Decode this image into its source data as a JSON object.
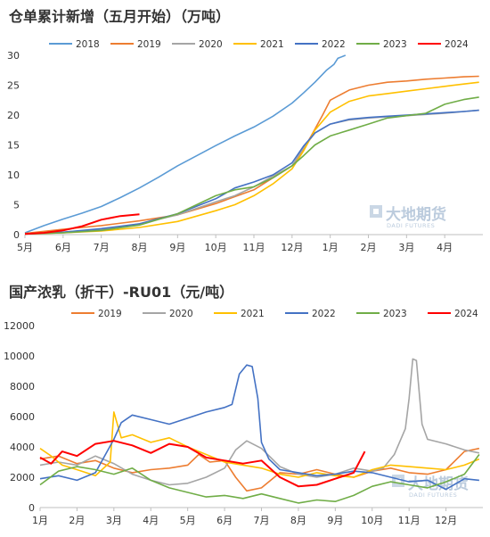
{
  "charts": [
    {
      "title": "仓单累计新增（五月开始）（万吨）",
      "type": "line",
      "x_labels": [
        "5月",
        "6月",
        "7月",
        "8月",
        "9月",
        "10月",
        "11月",
        "12月",
        "1月",
        "2月",
        "3月",
        "4月"
      ],
      "ylim": [
        0,
        30
      ],
      "yticks": [
        0,
        5,
        10,
        15,
        20,
        25,
        30
      ],
      "legend_position": "top",
      "watermark": {
        "main": "大地期货",
        "sub": "DADI FUTURES"
      }
    },
    {
      "title": "国产浓乳（折干）-RU01（元/吨）",
      "type": "line",
      "x_labels": [
        "1月",
        "2月",
        "3月",
        "4月",
        "5月",
        "6月",
        "7月",
        "8月",
        "9月",
        "10月",
        "11月",
        "12月"
      ],
      "ylim": [
        0,
        12000
      ],
      "yticks": [
        0,
        2000,
        4000,
        6000,
        8000,
        10000,
        12000
      ],
      "legend_position": "top",
      "watermark": {
        "main": "大地期货",
        "sub": "DADI FUTURES"
      }
    }
  ],
  "chart_data": [
    {
      "type": "line",
      "title": "仓单累计新增（五月开始）（万吨）",
      "xlabel": "",
      "ylabel": "",
      "x": [
        "5月",
        "6月",
        "7月",
        "8月",
        "9月",
        "10月",
        "11月",
        "12月",
        "1月",
        "2月",
        "3月",
        "4月"
      ],
      "ylim": [
        0,
        30
      ],
      "series": [
        {
          "name": "2018",
          "color": "#5b9bd5",
          "x": [
            0,
            0.5,
            1,
            1.5,
            2,
            2.5,
            3,
            3.5,
            4,
            4.5,
            5,
            5.5,
            6,
            6.5,
            7,
            7.3,
            7.6,
            7.9,
            8.1,
            8.2,
            8.4
          ],
          "y": [
            0.3,
            1.5,
            2.6,
            3.6,
            4.7,
            6.2,
            7.8,
            9.6,
            11.5,
            13.2,
            14.9,
            16.5,
            18.0,
            19.8,
            22.0,
            23.7,
            25.5,
            27.5,
            28.5,
            29.5,
            30.0
          ]
        },
        {
          "name": "2019",
          "color": "#ed7d31",
          "x": [
            0,
            1,
            2,
            3,
            4,
            5,
            6,
            6.5,
            7,
            7.2,
            7.5,
            7.8,
            8,
            8.5,
            9,
            9.5,
            10,
            10.5,
            11,
            11.5,
            11.9
          ],
          "y": [
            0.2,
            0.9,
            1.5,
            2.3,
            3.3,
            5.2,
            7.5,
            9.5,
            11.5,
            13.2,
            16.5,
            20.0,
            22.5,
            24.2,
            25.0,
            25.5,
            25.7,
            26.0,
            26.2,
            26.4,
            26.5
          ]
        },
        {
          "name": "2020",
          "color": "#a5a5a5",
          "x": [
            0,
            1,
            2,
            3,
            4,
            5,
            5.5,
            6,
            6.5,
            7,
            7.3,
            7.6,
            8,
            8.5,
            9,
            9.5,
            10,
            10.5,
            11,
            11.5,
            11.9
          ],
          "y": [
            0.1,
            0.4,
            0.8,
            1.8,
            3.3,
            5.5,
            6.5,
            8.0,
            9.8,
            11.5,
            14.5,
            17.0,
            18.5,
            19.2,
            19.5,
            19.7,
            19.9,
            20.1,
            20.3,
            20.6,
            20.8
          ]
        },
        {
          "name": "2021",
          "color": "#ffc000",
          "x": [
            0,
            1,
            2,
            3,
            4,
            5,
            5.5,
            6,
            6.5,
            7,
            7.3,
            7.6,
            8,
            8.5,
            9,
            9.5,
            10,
            10.5,
            11,
            11.5,
            11.9
          ],
          "y": [
            0.1,
            0.3,
            0.6,
            1.2,
            2.2,
            4.0,
            5.0,
            6.5,
            8.5,
            11.0,
            14.0,
            17.5,
            20.5,
            22.3,
            23.2,
            23.6,
            24.0,
            24.4,
            24.8,
            25.2,
            25.5
          ]
        },
        {
          "name": "2022",
          "color": "#4472c4",
          "x": [
            0,
            1,
            2,
            3,
            4,
            5,
            5.5,
            6,
            6.5,
            7,
            7.3,
            7.6,
            8,
            8.5,
            9,
            9.5,
            10,
            10.5,
            11,
            11.5,
            11.9
          ],
          "y": [
            0.1,
            0.4,
            1.0,
            1.8,
            3.5,
            6.0,
            7.8,
            8.8,
            10.0,
            12.0,
            14.8,
            17.0,
            18.5,
            19.3,
            19.6,
            19.8,
            20.0,
            20.2,
            20.4,
            20.6,
            20.8
          ]
        },
        {
          "name": "2023",
          "color": "#70ad47",
          "x": [
            0,
            1,
            2,
            3,
            4,
            5,
            5.5,
            6,
            6.5,
            7,
            7.3,
            7.6,
            8,
            8.5,
            9,
            9.5,
            10,
            10.5,
            11,
            11.5,
            11.9
          ],
          "y": [
            0.1,
            0.3,
            0.7,
            1.6,
            3.5,
            6.5,
            7.5,
            8.0,
            9.5,
            11.5,
            13.2,
            15.0,
            16.5,
            17.5,
            18.5,
            19.5,
            19.9,
            20.3,
            21.8,
            22.6,
            23.0
          ]
        },
        {
          "name": "2024",
          "color": "#ff0000",
          "x": [
            0,
            0.5,
            1,
            1.5,
            2,
            2.5,
            3
          ],
          "y": [
            0.1,
            0.3,
            0.7,
            1.4,
            2.5,
            3.1,
            3.4
          ]
        }
      ]
    },
    {
      "type": "line",
      "title": "国产浓乳（折干）-RU01（元/吨）",
      "xlabel": "",
      "ylabel": "",
      "x": [
        "1月",
        "2月",
        "3月",
        "4月",
        "5月",
        "6月",
        "7月",
        "8月",
        "9月",
        "10月",
        "11月",
        "12月"
      ],
      "ylim": [
        0,
        12000
      ],
      "series": [
        {
          "name": "2019",
          "color": "#ed7d31",
          "x": [
            0,
            0.5,
            1,
            1.5,
            2,
            2.5,
            3,
            3.5,
            4,
            4.3,
            4.6,
            5,
            5.3,
            5.6,
            6,
            6.5,
            7,
            7.5,
            8,
            8.5,
            9,
            9.5,
            10,
            10.5,
            11,
            11.5,
            11.9
          ],
          "y": [
            3200,
            3400,
            2900,
            3100,
            2600,
            2300,
            2500,
            2600,
            2800,
            3500,
            3000,
            3100,
            2000,
            1100,
            1300,
            2300,
            2200,
            2500,
            2200,
            2000,
            2400,
            2600,
            2300,
            2200,
            2500,
            3700,
            3900
          ]
        },
        {
          "name": "2020",
          "color": "#a5a5a5",
          "x": [
            0,
            0.5,
            1,
            1.5,
            2,
            2.5,
            3,
            3.5,
            4,
            4.5,
            5,
            5.3,
            5.6,
            6,
            6.5,
            7,
            7.5,
            8,
            8.5,
            9,
            9.3,
            9.6,
            9.9,
            10,
            10.1,
            10.2,
            10.35,
            10.5,
            11,
            11.5,
            11.9
          ],
          "y": [
            2800,
            3000,
            2800,
            3400,
            2900,
            2200,
            1800,
            1500,
            1600,
            2000,
            2600,
            3800,
            4400,
            3900,
            2700,
            2200,
            2000,
            2200,
            2600,
            2400,
            2600,
            3500,
            5200,
            7200,
            9800,
            9700,
            5500,
            4500,
            4200,
            3800,
            3600
          ]
        },
        {
          "name": "2021",
          "color": "#ffc000",
          "x": [
            0,
            0.3,
            0.6,
            1,
            1.5,
            1.9,
            2,
            2.2,
            2.5,
            3,
            3.5,
            4,
            4.5,
            5,
            5.5,
            6,
            6.5,
            7,
            7.5,
            8,
            8.5,
            9,
            9.5,
            10,
            10.5,
            11,
            11.5,
            11.9
          ],
          "y": [
            3900,
            3400,
            2800,
            2500,
            2100,
            3000,
            6300,
            4600,
            4800,
            4300,
            4600,
            4000,
            3500,
            3000,
            2800,
            2600,
            2200,
            2000,
            2300,
            2100,
            2000,
            2500,
            2800,
            2700,
            2600,
            2500,
            2800,
            3200
          ]
        },
        {
          "name": "2022",
          "color": "#4472c4",
          "x": [
            0,
            0.5,
            1,
            1.5,
            2,
            2.2,
            2.5,
            3,
            3.5,
            4,
            4.5,
            5,
            5.2,
            5.4,
            5.6,
            5.75,
            5.9,
            6,
            6.2,
            6.5,
            7,
            7.5,
            8,
            8.5,
            9,
            9.5,
            10,
            10.5,
            11,
            11.5,
            11.9
          ],
          "y": [
            1900,
            2100,
            1800,
            2300,
            4500,
            5600,
            6100,
            5800,
            5500,
            5900,
            6300,
            6600,
            6800,
            8800,
            9400,
            9300,
            7200,
            4300,
            3200,
            2500,
            2300,
            2100,
            2200,
            2400,
            2300,
            2000,
            1700,
            1800,
            1200,
            1900,
            1800
          ]
        },
        {
          "name": "2023",
          "color": "#70ad47",
          "x": [
            0,
            0.5,
            1,
            1.5,
            2,
            2.5,
            3,
            3.5,
            4,
            4.5,
            5,
            5.5,
            6,
            6.5,
            7,
            7.5,
            8,
            8.5,
            9,
            9.5,
            10,
            10.5,
            11,
            11.5,
            11.9
          ],
          "y": [
            1500,
            2400,
            2700,
            2500,
            2200,
            2600,
            1800,
            1300,
            1000,
            700,
            800,
            600,
            900,
            600,
            300,
            500,
            400,
            800,
            1400,
            1700,
            1500,
            1300,
            1700,
            2200,
            3500
          ]
        },
        {
          "name": "2024",
          "color": "#ff0000",
          "x": [
            0,
            0.3,
            0.6,
            1,
            1.5,
            2,
            2.5,
            3,
            3.5,
            4,
            4.5,
            5,
            5.5,
            6,
            6.5,
            7,
            7.5,
            8,
            8.5,
            8.8
          ],
          "y": [
            3300,
            2900,
            3700,
            3400,
            4200,
            4400,
            4100,
            3600,
            4200,
            4000,
            3300,
            3100,
            2900,
            3100,
            2000,
            1400,
            1500,
            1900,
            2300,
            3700
          ]
        }
      ]
    }
  ]
}
